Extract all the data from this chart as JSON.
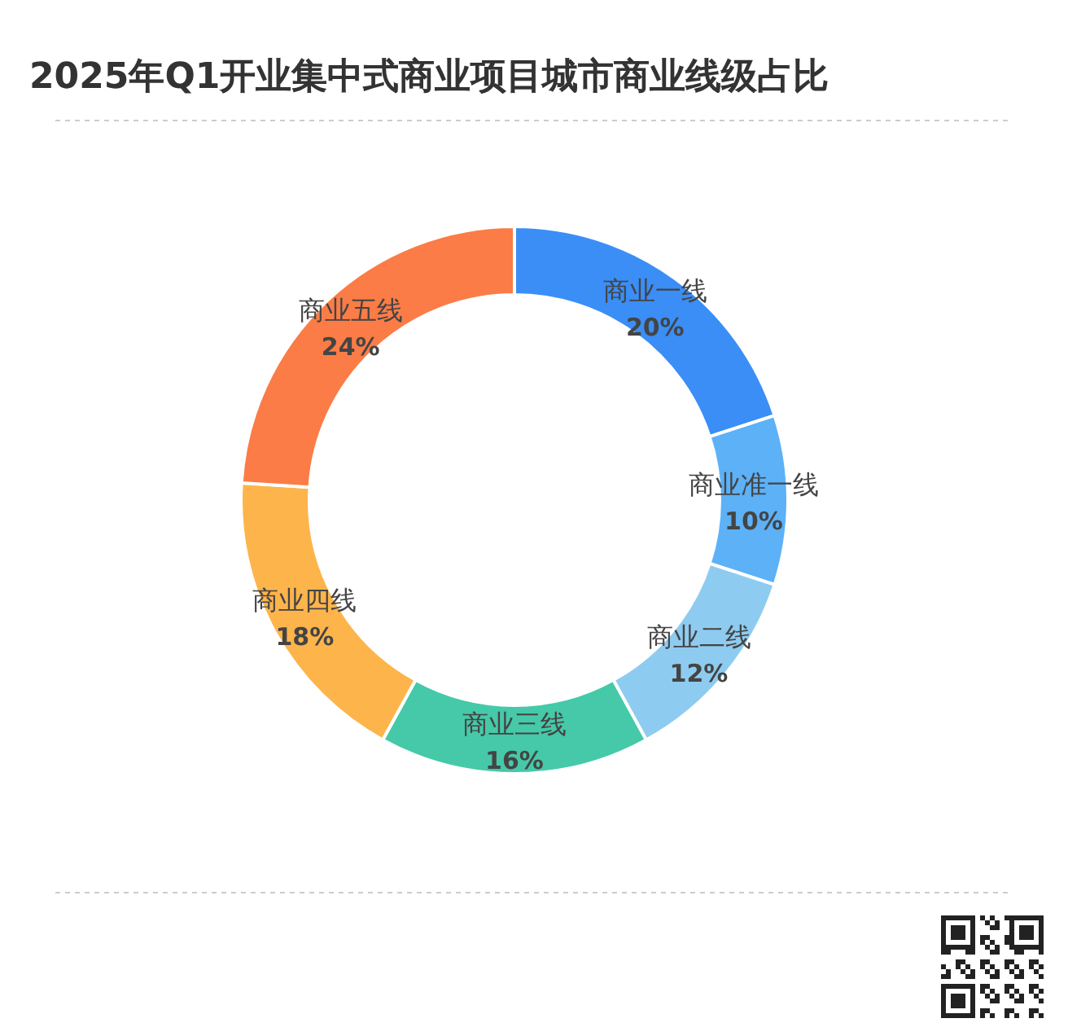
{
  "chart_data": {
    "type": "donut",
    "title": "2025年Q1开业集中式商业项目城市商业线级占比",
    "categories": [
      "商业一线",
      "商业准一线",
      "商业二线",
      "商业三线",
      "商业四线",
      "商业五线"
    ],
    "values": [
      20,
      10,
      12,
      16,
      18,
      24
    ],
    "colors": [
      "#3a8ef6",
      "#5cb1f7",
      "#8ecbf0",
      "#45c9a8",
      "#fdb44b",
      "#fb7c46"
    ],
    "value_labels": [
      "20%",
      "10%",
      "12%",
      "16%",
      "18%",
      "24%"
    ]
  }
}
